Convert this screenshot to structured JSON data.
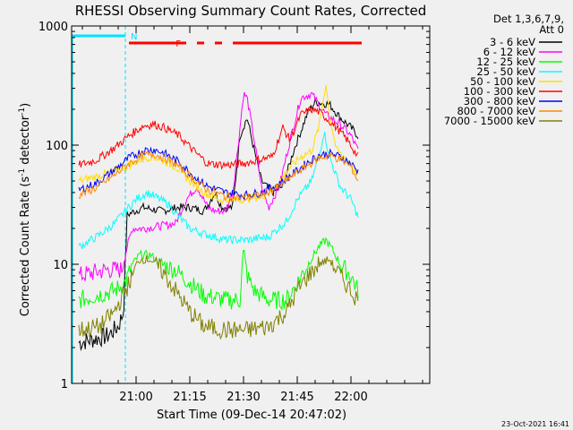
{
  "chart_data": {
    "type": "line",
    "title": "RHESSI Observing Summary Count Rates, Corrected",
    "xlabel": "Start Time (09-Dec-14 20:47:02)",
    "ylabel": "Corrected Count Rate (s⁻¹ detector⁻¹)",
    "generated": "23-Oct-2021 16:41",
    "y_scale": "log",
    "ylim": [
      1,
      1000
    ],
    "y_ticks": [
      {
        "v": 1,
        "label": "1"
      },
      {
        "v": 10,
        "label": "10"
      },
      {
        "v": 100,
        "label": "100"
      },
      {
        "v": 1000,
        "label": "1000"
      }
    ],
    "xlim_min": [
      -5,
      95
    ],
    "x_ticks": [
      {
        "t": 13,
        "label": "21:00"
      },
      {
        "t": 28,
        "label": "21:15"
      },
      {
        "t": 43,
        "label": "21:30"
      },
      {
        "t": 58,
        "label": "21:45"
      },
      {
        "t": 73,
        "label": "22:00"
      }
    ],
    "legend_header": [
      "Det 1,3,6,7,9,",
      "Att 0"
    ],
    "flags": [
      {
        "label": "N",
        "color": "#00e0ff",
        "segments": [
          [
            -5,
            10
          ]
        ]
      },
      {
        "label": "F",
        "color": "#ff0000",
        "segments": [
          [
            11,
            27
          ],
          [
            30,
            32
          ],
          [
            35,
            37
          ],
          [
            40,
            76
          ]
        ]
      }
    ],
    "marker_times": [
      10
    ],
    "series": [
      {
        "name": "3 - 6 keV",
        "color": "#000000",
        "points": [
          [
            -3,
            2.2
          ],
          [
            5,
            2.5
          ],
          [
            8,
            3
          ],
          [
            9.5,
            4
          ],
          [
            10.5,
            26
          ],
          [
            15,
            30
          ],
          [
            20,
            28
          ],
          [
            25,
            30
          ],
          [
            28,
            30
          ],
          [
            32,
            28
          ],
          [
            35,
            40
          ],
          [
            37,
            30
          ],
          [
            40,
            30
          ],
          [
            42,
            120
          ],
          [
            44,
            170
          ],
          [
            46,
            90
          ],
          [
            48,
            50
          ],
          [
            51,
            40
          ],
          [
            54,
            45
          ],
          [
            57,
            90
          ],
          [
            61,
            190
          ],
          [
            63,
            230
          ],
          [
            67,
            220
          ],
          [
            70,
            170
          ],
          [
            73,
            140
          ],
          [
            75,
            120
          ]
        ]
      },
      {
        "name": "6 - 12 keV",
        "color": "#ff00ff",
        "points": [
          [
            -3,
            8
          ],
          [
            5,
            9
          ],
          [
            9,
            9
          ],
          [
            10.5,
            14
          ],
          [
            12,
            20
          ],
          [
            15,
            20
          ],
          [
            20,
            21
          ],
          [
            24,
            22
          ],
          [
            27,
            35
          ],
          [
            30,
            45
          ],
          [
            33,
            30
          ],
          [
            35,
            28
          ],
          [
            38,
            28
          ],
          [
            40,
            40
          ],
          [
            41.5,
            100
          ],
          [
            43,
            270
          ],
          [
            44,
            250
          ],
          [
            46,
            110
          ],
          [
            48,
            45
          ],
          [
            50,
            30
          ],
          [
            53,
            45
          ],
          [
            56,
            110
          ],
          [
            59,
            250
          ],
          [
            62,
            270
          ],
          [
            66,
            180
          ],
          [
            70,
            150
          ],
          [
            73,
            120
          ],
          [
            75,
            90
          ]
        ]
      },
      {
        "name": "12 - 25 keV",
        "color": "#00ff00",
        "points": [
          [
            -3,
            5
          ],
          [
            2,
            5.5
          ],
          [
            7,
            6
          ],
          [
            10,
            7
          ],
          [
            12,
            10
          ],
          [
            14,
            12
          ],
          [
            17,
            12
          ],
          [
            20,
            10
          ],
          [
            24,
            9
          ],
          [
            28,
            7
          ],
          [
            32,
            5.5
          ],
          [
            38,
            5
          ],
          [
            42,
            5
          ],
          [
            43,
            14
          ],
          [
            44,
            8
          ],
          [
            46,
            6
          ],
          [
            50,
            5
          ],
          [
            55,
            5
          ],
          [
            58,
            7
          ],
          [
            61,
            10
          ],
          [
            64,
            14
          ],
          [
            66,
            16
          ],
          [
            68,
            13
          ],
          [
            70,
            10
          ],
          [
            73,
            8
          ],
          [
            75,
            6
          ]
        ]
      },
      {
        "name": "25 - 50 keV",
        "color": "#00ffff",
        "points": [
          [
            -3,
            14
          ],
          [
            2,
            17
          ],
          [
            7,
            22
          ],
          [
            10,
            28
          ],
          [
            13,
            35
          ],
          [
            16,
            40
          ],
          [
            19,
            36
          ],
          [
            22,
            32
          ],
          [
            25,
            25
          ],
          [
            28,
            20
          ],
          [
            32,
            18
          ],
          [
            38,
            16
          ],
          [
            44,
            16
          ],
          [
            50,
            17
          ],
          [
            55,
            23
          ],
          [
            58,
            35
          ],
          [
            62,
            50
          ],
          [
            64,
            80
          ],
          [
            65.5,
            130
          ],
          [
            67,
            80
          ],
          [
            70,
            45
          ],
          [
            73,
            35
          ],
          [
            75,
            25
          ]
        ]
      },
      {
        "name": "50 - 100 keV",
        "color": "#ffdd00",
        "points": [
          [
            -3,
            50
          ],
          [
            5,
            58
          ],
          [
            10,
            66
          ],
          [
            14,
            75
          ],
          [
            17,
            80
          ],
          [
            20,
            76
          ],
          [
            24,
            66
          ],
          [
            28,
            50
          ],
          [
            32,
            40
          ],
          [
            36,
            35
          ],
          [
            42,
            35
          ],
          [
            48,
            37
          ],
          [
            52,
            45
          ],
          [
            56,
            65
          ],
          [
            59,
            80
          ],
          [
            62,
            90
          ],
          [
            64,
            140
          ],
          [
            66,
            330
          ],
          [
            67,
            180
          ],
          [
            69,
            90
          ],
          [
            72,
            75
          ],
          [
            75,
            55
          ]
        ]
      },
      {
        "name": "100 - 300 keV",
        "color": "#ff0000",
        "points": [
          [
            -3,
            68
          ],
          [
            2,
            75
          ],
          [
            7,
            95
          ],
          [
            11,
            120
          ],
          [
            15,
            145
          ],
          [
            18,
            150
          ],
          [
            21,
            140
          ],
          [
            25,
            120
          ],
          [
            29,
            90
          ],
          [
            33,
            70
          ],
          [
            38,
            68
          ],
          [
            43,
            70
          ],
          [
            47,
            75
          ],
          [
            51,
            80
          ],
          [
            54,
            140
          ],
          [
            56,
            110
          ],
          [
            59,
            180
          ],
          [
            62,
            200
          ],
          [
            64,
            190
          ],
          [
            66,
            170
          ],
          [
            69,
            140
          ],
          [
            72,
            110
          ],
          [
            75,
            80
          ]
        ]
      },
      {
        "name": "300 - 800 keV",
        "color": "#0000ff",
        "points": [
          [
            -3,
            42
          ],
          [
            2,
            48
          ],
          [
            7,
            62
          ],
          [
            11,
            78
          ],
          [
            15,
            90
          ],
          [
            18,
            92
          ],
          [
            21,
            85
          ],
          [
            25,
            72
          ],
          [
            29,
            55
          ],
          [
            33,
            45
          ],
          [
            38,
            40
          ],
          [
            43,
            38
          ],
          [
            48,
            40
          ],
          [
            53,
            48
          ],
          [
            57,
            58
          ],
          [
            61,
            72
          ],
          [
            64,
            82
          ],
          [
            67,
            85
          ],
          [
            70,
            80
          ],
          [
            73,
            70
          ],
          [
            75,
            60
          ]
        ]
      },
      {
        "name": "800 - 7000 keV",
        "color": "#ff8800",
        "points": [
          [
            -3,
            38
          ],
          [
            2,
            44
          ],
          [
            7,
            56
          ],
          [
            11,
            70
          ],
          [
            15,
            82
          ],
          [
            18,
            84
          ],
          [
            21,
            78
          ],
          [
            25,
            66
          ],
          [
            29,
            52
          ],
          [
            33,
            42
          ],
          [
            38,
            37
          ],
          [
            43,
            36
          ],
          [
            48,
            38
          ],
          [
            53,
            45
          ],
          [
            57,
            56
          ],
          [
            61,
            68
          ],
          [
            64,
            78
          ],
          [
            67,
            82
          ],
          [
            70,
            76
          ],
          [
            73,
            66
          ],
          [
            75,
            50
          ]
        ]
      },
      {
        "name": "7000 - 15000 keV",
        "color": "#808000",
        "points": [
          [
            -3,
            2.8
          ],
          [
            3,
            3
          ],
          [
            7,
            4
          ],
          [
            10,
            6
          ],
          [
            12,
            8
          ],
          [
            14,
            11
          ],
          [
            17,
            11
          ],
          [
            20,
            9
          ],
          [
            24,
            6
          ],
          [
            28,
            4
          ],
          [
            32,
            3
          ],
          [
            38,
            2.8
          ],
          [
            44,
            2.8
          ],
          [
            50,
            3
          ],
          [
            55,
            4
          ],
          [
            58,
            6
          ],
          [
            61,
            8
          ],
          [
            64,
            10
          ],
          [
            67,
            11
          ],
          [
            70,
            8
          ],
          [
            73,
            6
          ],
          [
            75,
            5
          ]
        ]
      }
    ]
  }
}
